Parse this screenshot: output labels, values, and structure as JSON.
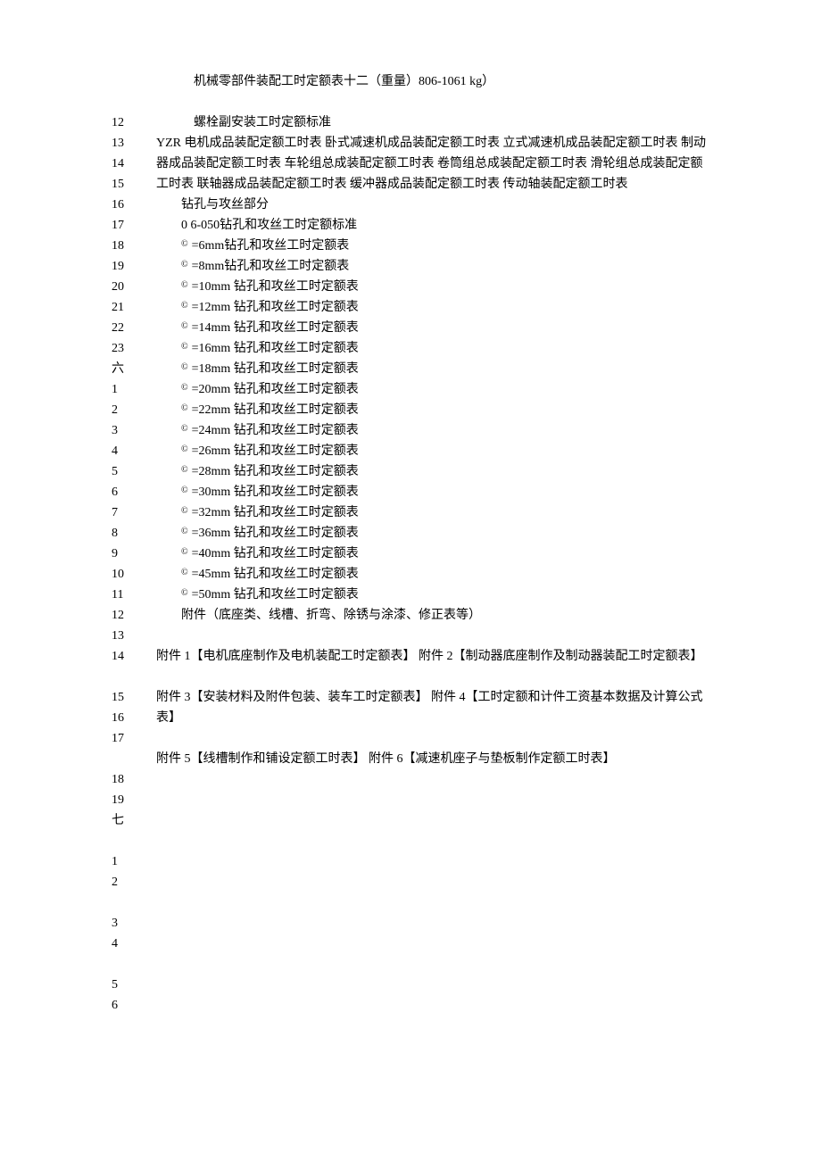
{
  "title_line": "机械零部件装配工时定额表十二（重量）806-1061 kg）",
  "bolt_line": "螺栓副安装工时定额标准",
  "yzr_paragraph": "YZR 电机成品装配定额工时表  卧式减速机成品装配定额工时表  立式减速机成品装配定额工时表  制动器成品装配定额工时表  车轮组总成装配定额工时表  卷筒组总成装配定额工时表  滑轮组总成装配定额工时表  联轴器成品装配定额工时表  缓冲器成品装配定额工时表  传动轴装配定额工时表",
  "drill_section": "钻孔与攻丝部分",
  "drill_standard": "0  6-050钻孔和攻丝工时定额标准",
  "drill_items": [
    "=6mm钻孔和攻丝工时定额表",
    "=8mm钻孔和攻丝工时定额表",
    "=10mm 钻孔和攻丝工时定额表",
    "=12mm 钻孔和攻丝工时定额表",
    "=14mm 钻孔和攻丝工时定额表",
    "=16mm 钻孔和攻丝工时定额表",
    "=18mm 钻孔和攻丝工时定额表",
    "=20mm 钻孔和攻丝工时定额表",
    "=22mm 钻孔和攻丝工时定额表",
    "=24mm 钻孔和攻丝工时定额表",
    "=26mm 钻孔和攻丝工时定额表",
    "=28mm 钻孔和攻丝工时定额表",
    "=30mm 钻孔和攻丝工时定额表",
    "=32mm 钻孔和攻丝工时定额表",
    "=36mm 钻孔和攻丝工时定额表",
    "=40mm 钻孔和攻丝工时定额表",
    "=45mm 钻孔和攻丝工时定额表",
    "=50mm 钻孔和攻丝工时定额表"
  ],
  "appendix_title": "附件（底座类、线槽、折弯、除锈与涂漆、修正表等）",
  "appendix_1_2": "附件  1【电机底座制作及电机装配工时定额表】  附件  2【制动器底座制作及制动器装配工时定额表】",
  "appendix_3_4": "附件  3【安装材料及附件包装、装车工时定额表】  附件  4【工时定额和计件工资基本数据及计算公式表】",
  "appendix_5_6": "附件  5【线槽制作和铺设定额工时表】  附件  6【减速机座子与垫板制作定额工时表】",
  "numbers": [
    "12",
    "13",
    "14",
    "15",
    "16",
    "17",
    "18",
    "19",
    "20",
    "21",
    "22",
    "23",
    "六",
    "1",
    "2",
    "3",
    "4",
    "5",
    "6",
    "7",
    "8",
    "9",
    "10",
    "11",
    "12",
    "13",
    "14",
    "15",
    "16",
    "17",
    "18",
    "19",
    "七",
    "1",
    "2",
    "3",
    "4",
    "5",
    "6"
  ],
  "circle_char": "©"
}
